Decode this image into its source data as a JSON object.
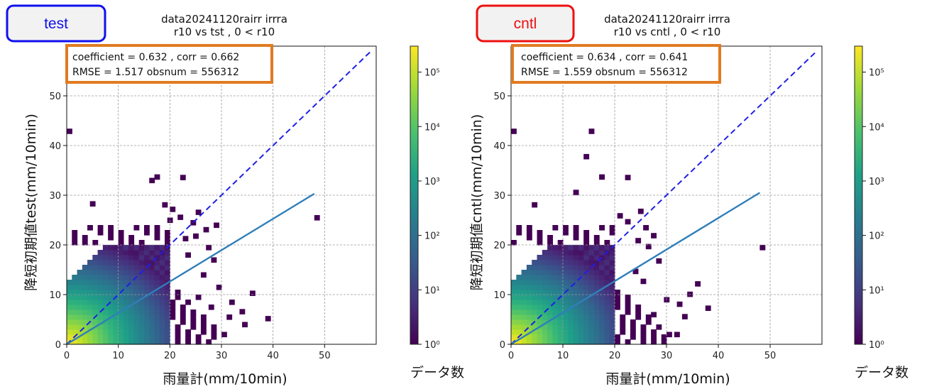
{
  "colors": {
    "test_badge_border": "#1010ee",
    "cntl_badge_border": "#ee1010",
    "badge_fill": "#f2f2f2",
    "stats_box_border": "#e07b22",
    "diagonal_line": "#1f1fe6",
    "fit_line": "#2f7fb9",
    "grid": "#9a9a9a"
  },
  "colormap": "viridis",
  "chart_data": [
    {
      "type": "heatmap",
      "badge": "test",
      "title_line1": "data20241120rairr irrra",
      "title_line2": "r10 vs tst , 0 < r10",
      "xlabel": "雨量計(mm/10min)",
      "ylabel": "降短初期値test(mm/10min)",
      "xlim": [
        0,
        60
      ],
      "ylim": [
        0,
        60
      ],
      "x_ticks": [
        0,
        10,
        20,
        30,
        40,
        50
      ],
      "y_ticks": [
        0,
        10,
        20,
        30,
        40,
        50
      ],
      "grid": true,
      "stats_line1": "coefficient = 0.632 ,  corr = 0.662",
      "stats_line2": "RMSE = 1.517 obsnum = 556312",
      "coefficient": 0.632,
      "corr": 0.662,
      "rmse": 1.517,
      "obsnum": 556312,
      "fit_line": {
        "x": [
          0,
          48
        ],
        "y": [
          0,
          30.3
        ]
      },
      "diagonal": {
        "x": [
          0,
          59
        ],
        "y": [
          0,
          59
        ]
      },
      "colorbar": {
        "label": "データ数",
        "scale": "log",
        "range": [
          1,
          300000
        ],
        "ticks": [
          "10⁰",
          "10¹",
          "10²",
          "10³",
          "10⁴",
          "10⁵"
        ]
      },
      "outliers": [
        [
          0,
          42.4
        ],
        [
          48,
          25
        ],
        [
          16,
          32.5
        ],
        [
          17,
          33.2
        ],
        [
          22,
          33.1
        ],
        [
          18.5,
          27.6
        ],
        [
          20,
          26.7
        ],
        [
          4.5,
          27.8
        ],
        [
          25,
          26.1
        ],
        [
          21.5,
          25.1
        ],
        [
          19.5,
          24.5
        ],
        [
          24,
          24
        ],
        [
          26.5,
          22.6
        ],
        [
          28.5,
          23.5
        ],
        [
          24.5,
          21.3
        ],
        [
          22.5,
          20.8
        ],
        [
          27,
          19
        ],
        [
          23,
          17.5
        ],
        [
          28,
          16.5
        ],
        [
          35.5,
          9.8
        ],
        [
          33.5,
          6.1
        ],
        [
          31.5,
          8
        ],
        [
          38.5,
          4.7
        ],
        [
          34,
          3.5
        ],
        [
          30,
          1.5
        ],
        [
          26,
          13.5
        ],
        [
          29,
          11
        ],
        [
          25,
          9
        ],
        [
          27.5,
          7
        ],
        [
          31,
          5
        ]
      ]
    },
    {
      "type": "heatmap",
      "badge": "cntl",
      "title_line1": "data20241120rairr irrra",
      "title_line2": "r10 vs cntl , 0 < r10",
      "xlabel": "雨量計(mm/10min)",
      "ylabel": "降短初期値cntl(mm/10min)",
      "xlim": [
        0,
        60
      ],
      "ylim": [
        0,
        60
      ],
      "x_ticks": [
        0,
        10,
        20,
        30,
        40,
        50
      ],
      "y_ticks": [
        0,
        10,
        20,
        30,
        40,
        50
      ],
      "grid": true,
      "stats_line1": "coefficient = 0.634 ,  corr = 0.641",
      "stats_line2": "RMSE = 1.559 obsnum = 556312",
      "coefficient": 0.634,
      "corr": 0.641,
      "rmse": 1.559,
      "obsnum": 556312,
      "fit_line": {
        "x": [
          0,
          48
        ],
        "y": [
          0,
          30.5
        ]
      },
      "diagonal": {
        "x": [
          0,
          59
        ],
        "y": [
          0,
          59
        ]
      },
      "colorbar": {
        "label": "データ数",
        "scale": "log",
        "range": [
          1,
          300000
        ],
        "ticks": [
          "10⁰",
          "10¹",
          "10²",
          "10³",
          "10⁴",
          "10⁵"
        ]
      },
      "outliers": [
        [
          0,
          42.4
        ],
        [
          15,
          42.4
        ],
        [
          48,
          19
        ],
        [
          14,
          37.3
        ],
        [
          17,
          33.2
        ],
        [
          22,
          33.1
        ],
        [
          12,
          30.1
        ],
        [
          4,
          27.6
        ],
        [
          24.5,
          26.3
        ],
        [
          20.5,
          25.4
        ],
        [
          22,
          24.2
        ],
        [
          25.5,
          23
        ],
        [
          27,
          21.4
        ],
        [
          24,
          20.4
        ],
        [
          26,
          19.2
        ],
        [
          35.5,
          11.7
        ],
        [
          34,
          9.6
        ],
        [
          37.5,
          6.8
        ],
        [
          33,
          5.1
        ],
        [
          31.5,
          1.5
        ],
        [
          30,
          1.5
        ],
        [
          28,
          16.3
        ],
        [
          25,
          12.2
        ],
        [
          29.5,
          8.5
        ],
        [
          27,
          5.5
        ],
        [
          32,
          7.6
        ],
        [
          23.5,
          14.2
        ]
      ]
    }
  ]
}
